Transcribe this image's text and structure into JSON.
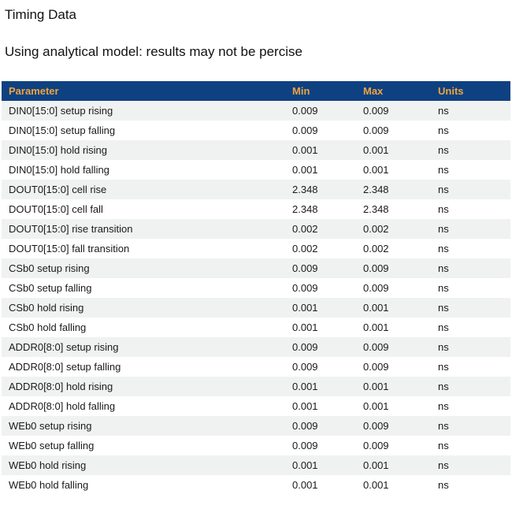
{
  "page": {
    "title": "Timing Data",
    "subtitle": "Using analytical model: results may not be percise"
  },
  "table": {
    "columns": [
      "Parameter",
      "Min",
      "Max",
      "Units"
    ],
    "rows": [
      {
        "parameter": "DIN0[15:0] setup rising",
        "min": "0.009",
        "max": "0.009",
        "units": "ns"
      },
      {
        "parameter": "DIN0[15:0] setup falling",
        "min": "0.009",
        "max": "0.009",
        "units": "ns"
      },
      {
        "parameter": "DIN0[15:0] hold rising",
        "min": "0.001",
        "max": "0.001",
        "units": "ns"
      },
      {
        "parameter": "DIN0[15:0] hold falling",
        "min": "0.001",
        "max": "0.001",
        "units": "ns"
      },
      {
        "parameter": "DOUT0[15:0] cell rise",
        "min": "2.348",
        "max": "2.348",
        "units": "ns"
      },
      {
        "parameter": "DOUT0[15:0] cell fall",
        "min": "2.348",
        "max": "2.348",
        "units": "ns"
      },
      {
        "parameter": "DOUT0[15:0] rise transition",
        "min": "0.002",
        "max": "0.002",
        "units": "ns"
      },
      {
        "parameter": "DOUT0[15:0] fall transition",
        "min": "0.002",
        "max": "0.002",
        "units": "ns"
      },
      {
        "parameter": "CSb0 setup rising",
        "min": "0.009",
        "max": "0.009",
        "units": "ns"
      },
      {
        "parameter": "CSb0 setup falling",
        "min": "0.009",
        "max": "0.009",
        "units": "ns"
      },
      {
        "parameter": "CSb0 hold rising",
        "min": "0.001",
        "max": "0.001",
        "units": "ns"
      },
      {
        "parameter": "CSb0 hold falling",
        "min": "0.001",
        "max": "0.001",
        "units": "ns"
      },
      {
        "parameter": "ADDR0[8:0] setup rising",
        "min": "0.009",
        "max": "0.009",
        "units": "ns"
      },
      {
        "parameter": "ADDR0[8:0] setup falling",
        "min": "0.009",
        "max": "0.009",
        "units": "ns"
      },
      {
        "parameter": "ADDR0[8:0] hold rising",
        "min": "0.001",
        "max": "0.001",
        "units": "ns"
      },
      {
        "parameter": "ADDR0[8:0] hold falling",
        "min": "0.001",
        "max": "0.001",
        "units": "ns"
      },
      {
        "parameter": "WEb0 setup rising",
        "min": "0.009",
        "max": "0.009",
        "units": "ns"
      },
      {
        "parameter": "WEb0 setup falling",
        "min": "0.009",
        "max": "0.009",
        "units": "ns"
      },
      {
        "parameter": "WEb0 hold rising",
        "min": "0.001",
        "max": "0.001",
        "units": "ns"
      },
      {
        "parameter": "WEb0 hold falling",
        "min": "0.001",
        "max": "0.001",
        "units": "ns"
      }
    ]
  },
  "colors": {
    "header_bg": "#0e4181",
    "header_text": "#f0a43e",
    "row_alt_bg": "#f0f1f1"
  }
}
